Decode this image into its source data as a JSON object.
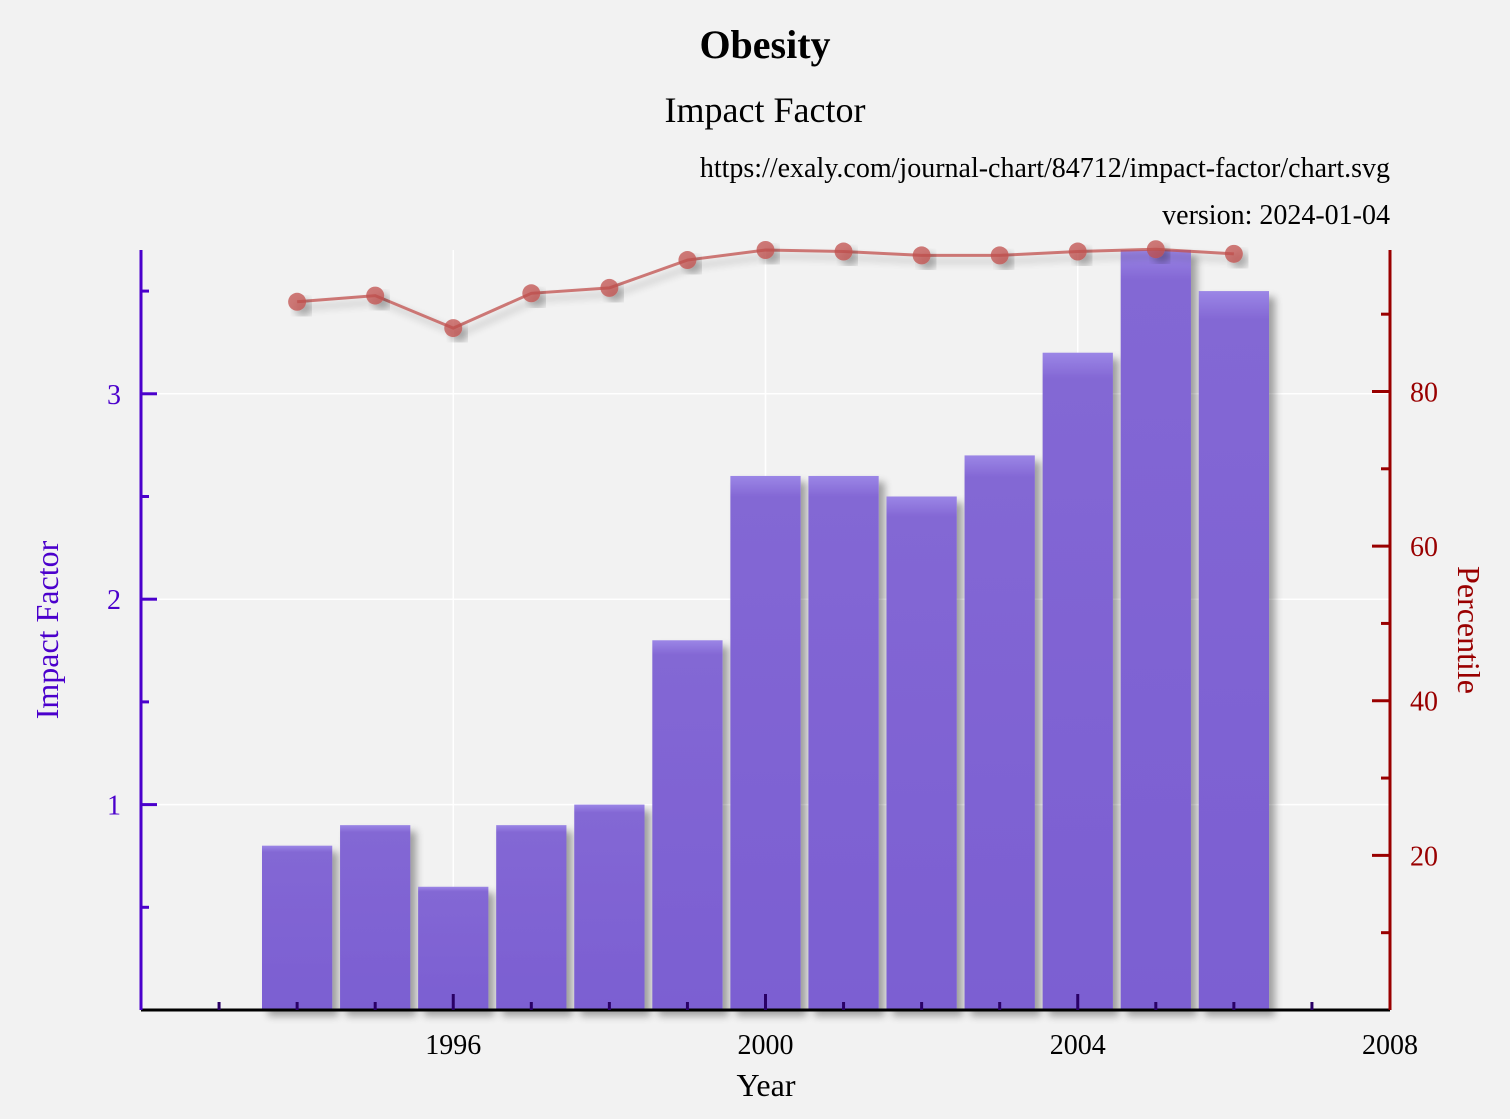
{
  "chart_data": {
    "type": "bar",
    "title": "Obesity",
    "subtitle": "Impact Factor",
    "source_url": "https://exaly.com/journal-chart/84712/impact-factor/chart.svg",
    "version": "version: 2024-01-04",
    "xlabel": "Year",
    "ylabel": "Impact Factor",
    "y2label": "Percentile",
    "xlim": [
      1992,
      2008
    ],
    "ylim": [
      0,
      3.7
    ],
    "y2lim": [
      0,
      98.3
    ],
    "x_ticks": [
      1996,
      2000,
      2004,
      2008
    ],
    "y_ticks": [
      1,
      2,
      3
    ],
    "y2_ticks": [
      20,
      40,
      60,
      80
    ],
    "grid": true,
    "colors": {
      "bars": "#7b5fd2",
      "line": "#c0504d",
      "left_axis": "#4b00cc",
      "right_axis": "#990000"
    },
    "series": [
      {
        "axis": "left",
        "type": "bar",
        "x": [
          1994,
          1995,
          1996,
          1997,
          1998,
          1999,
          2000,
          2001,
          2002,
          2003,
          2004,
          2005,
          2006
        ],
        "values": [
          0.8,
          0.9,
          0.6,
          0.9,
          1.0,
          1.8,
          2.6,
          2.6,
          2.5,
          2.7,
          3.2,
          3.7,
          3.5
        ]
      },
      {
        "axis": "right",
        "type": "line",
        "x": [
          1994,
          1995,
          1996,
          1997,
          1998,
          1999,
          2000,
          2001,
          2002,
          2003,
          2004,
          2005,
          2006
        ],
        "values": [
          91.6,
          92.4,
          88.2,
          92.7,
          93.4,
          97.0,
          98.3,
          98.1,
          97.6,
          97.6,
          98.1,
          98.4,
          97.8
        ]
      }
    ]
  }
}
